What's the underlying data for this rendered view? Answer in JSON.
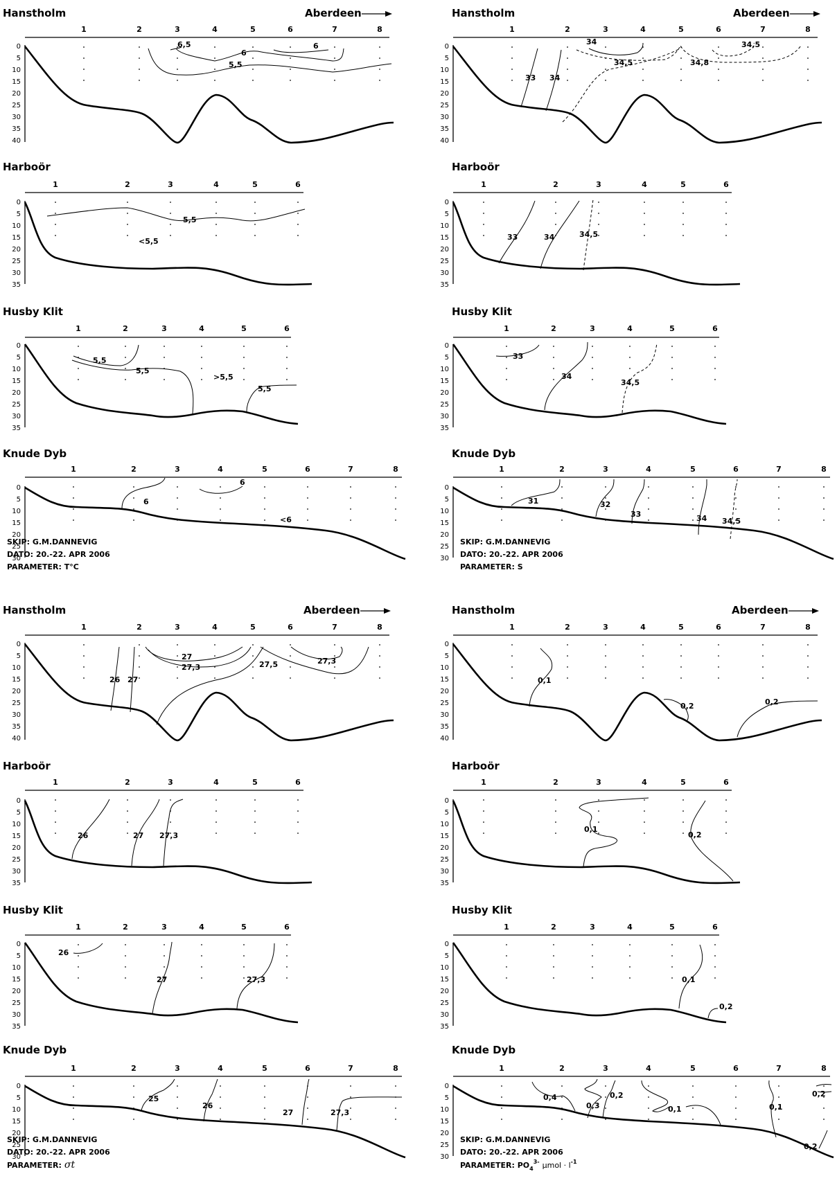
{
  "ship_label": "SKIP: G.M.DANNEVIG",
  "date_label": "DATO: 20.-22. APR 2006",
  "quadrants": [
    {
      "id": "temperature",
      "parameter_label": "PARAMETER: T°C",
      "transects": [
        {
          "name": "Hanstholm",
          "arrow_label": "Aberdeen",
          "stations": [
            "1",
            "2",
            "3",
            "4",
            "5",
            "6",
            "7",
            "8"
          ],
          "depth_ticks": [
            "0",
            "5",
            "10",
            "15",
            "20",
            "25",
            "30",
            "35",
            "40"
          ],
          "labels": [
            "6,5",
            "6",
            "6",
            "5,5"
          ]
        },
        {
          "name": "Harboör",
          "stations": [
            "1",
            "2",
            "3",
            "4",
            "5",
            "6"
          ],
          "depth_ticks": [
            "0",
            "5",
            "10",
            "15",
            "20",
            "25",
            "30",
            "35"
          ],
          "labels": [
            "5,5",
            "<5,5"
          ]
        },
        {
          "name": "Husby Klit",
          "stations": [
            "1",
            "2",
            "3",
            "4",
            "5",
            "6"
          ],
          "depth_ticks": [
            "0",
            "5",
            "10",
            "15",
            "20",
            "25",
            "30",
            "35"
          ],
          "labels": [
            "5,5",
            "5,5",
            ">5,5",
            "5,5"
          ]
        },
        {
          "name": "Knude Dyb",
          "stations": [
            "1",
            "2",
            "3",
            "4",
            "5",
            "6",
            "7",
            "8"
          ],
          "depth_ticks": [
            "0",
            "5",
            "10",
            "15",
            "20",
            "25",
            "30"
          ],
          "labels": [
            "6",
            "6",
            "<6"
          ]
        }
      ]
    },
    {
      "id": "salinity",
      "parameter_label": "PARAMETER: S",
      "transects": [
        {
          "name": "Hanstholm",
          "arrow_label": "Aberdeen",
          "stations": [
            "1",
            "2",
            "3",
            "4",
            "5",
            "6",
            "7",
            "8"
          ],
          "depth_ticks": [
            "0",
            "5",
            "10",
            "15",
            "20",
            "25",
            "30",
            "35",
            "40"
          ],
          "labels": [
            "34",
            "34,5",
            "34,5",
            "34,8",
            "33",
            "34"
          ]
        },
        {
          "name": "Harboör",
          "stations": [
            "1",
            "2",
            "3",
            "4",
            "5",
            "6"
          ],
          "depth_ticks": [
            "0",
            "5",
            "10",
            "15",
            "20",
            "25",
            "30",
            "35"
          ],
          "labels": [
            "33",
            "34",
            "34,5"
          ]
        },
        {
          "name": "Husby Klit",
          "stations": [
            "1",
            "2",
            "3",
            "4",
            "5",
            "6"
          ],
          "depth_ticks": [
            "0",
            "5",
            "10",
            "15",
            "20",
            "25",
            "30",
            "35"
          ],
          "labels": [
            "33",
            "34",
            "34,5"
          ]
        },
        {
          "name": "Knude Dyb",
          "stations": [
            "1",
            "2",
            "3",
            "4",
            "5",
            "6",
            "7",
            "8"
          ],
          "depth_ticks": [
            "0",
            "5",
            "10",
            "15",
            "20",
            "25",
            "30"
          ],
          "labels": [
            "31",
            "32",
            "33",
            "34",
            "34,5"
          ]
        }
      ]
    },
    {
      "id": "density",
      "parameter_label": "PARAMETER:",
      "parameter_symbol": "σt",
      "transects": [
        {
          "name": "Hanstholm",
          "arrow_label": "Aberdeen",
          "stations": [
            "1",
            "2",
            "3",
            "4",
            "5",
            "6",
            "7",
            "8"
          ],
          "depth_ticks": [
            "0",
            "5",
            "10",
            "15",
            "20",
            "25",
            "30",
            "35",
            "40"
          ],
          "labels": [
            "27",
            "27,3",
            "27,5",
            "27,3",
            "26",
            "27"
          ]
        },
        {
          "name": "Harboör",
          "stations": [
            "1",
            "2",
            "3",
            "4",
            "5",
            "6"
          ],
          "depth_ticks": [
            "0",
            "5",
            "10",
            "15",
            "20",
            "25",
            "30",
            "35"
          ],
          "labels": [
            "26",
            "27",
            "27,3"
          ]
        },
        {
          "name": "Husby Klit",
          "stations": [
            "1",
            "2",
            "3",
            "4",
            "5",
            "6"
          ],
          "depth_ticks": [
            "0",
            "5",
            "10",
            "15",
            "20",
            "25",
            "30",
            "35"
          ],
          "labels": [
            "26",
            "27",
            "27,3"
          ]
        },
        {
          "name": "Knude Dyb",
          "stations": [
            "1",
            "2",
            "3",
            "4",
            "5",
            "6",
            "7",
            "8"
          ],
          "depth_ticks": [
            "0",
            "5",
            "10",
            "15",
            "20",
            "25",
            "30"
          ],
          "labels": [
            "25",
            "26",
            "27",
            "27,3"
          ]
        }
      ]
    },
    {
      "id": "phosphate",
      "parameter_label": "PARAMETER: PO",
      "parameter_sub": "4",
      "parameter_sup": "3-",
      "parameter_unit": "μmol · l",
      "parameter_unit_sup": "-1",
      "transects": [
        {
          "name": "Hanstholm",
          "arrow_label": "Aberdeen",
          "stations": [
            "1",
            "2",
            "3",
            "4",
            "5",
            "6",
            "7",
            "8"
          ],
          "depth_ticks": [
            "0",
            "5",
            "10",
            "15",
            "20",
            "25",
            "30",
            "35",
            "40"
          ],
          "labels": [
            "0,1",
            "0,2",
            "0,2"
          ]
        },
        {
          "name": "Harboör",
          "stations": [
            "1",
            "2",
            "3",
            "4",
            "5",
            "6"
          ],
          "depth_ticks": [
            "0",
            "5",
            "10",
            "15",
            "20",
            "25",
            "30",
            "35"
          ],
          "labels": [
            "0,1",
            "0,2"
          ]
        },
        {
          "name": "Husby Klit",
          "stations": [
            "1",
            "2",
            "3",
            "4",
            "5",
            "6"
          ],
          "depth_ticks": [
            "0",
            "5",
            "10",
            "15",
            "20",
            "25",
            "30",
            "35"
          ],
          "labels": [
            "0,1",
            "0,2"
          ]
        },
        {
          "name": "Knude Dyb",
          "stations": [
            "1",
            "2",
            "3",
            "4",
            "5",
            "6",
            "7",
            "8"
          ],
          "depth_ticks": [
            "0",
            "5",
            "10",
            "15",
            "20",
            "25",
            "30"
          ],
          "labels": [
            "0,4",
            "0,3",
            "0,2",
            "0,1",
            "0,1",
            "0,2",
            "0,2"
          ]
        }
      ]
    }
  ]
}
